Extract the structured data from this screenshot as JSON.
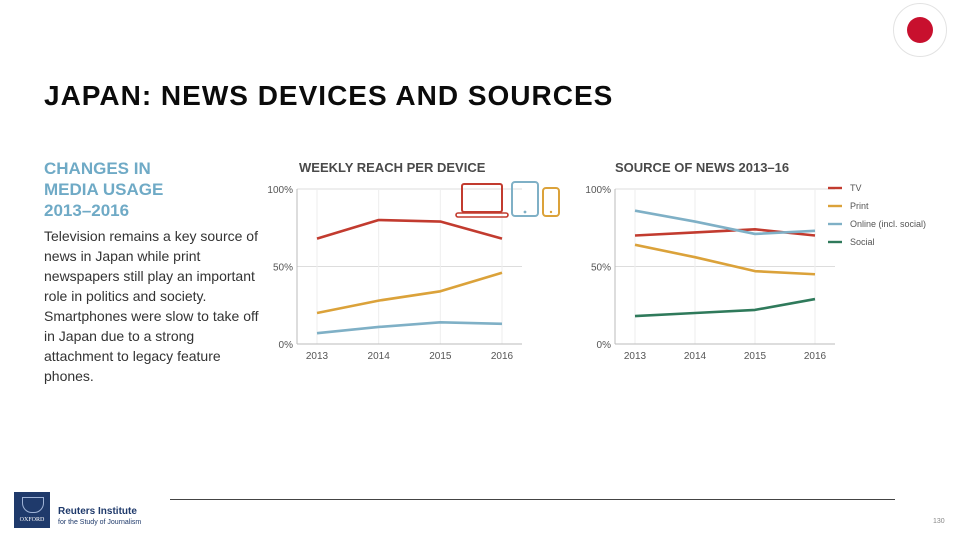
{
  "page": {
    "title": "JAPAN: NEWS DEVICES AND SOURCES",
    "side_heading": [
      "CHANGES IN",
      "MEDIA USAGE",
      "2013–2016"
    ],
    "side_body": "Television remains a key source of news in Japan while print newspapers still play an important role in politics and society. Smartphones were slow to take off in Japan due to a strong attachment to legacy feature phones.",
    "footer": {
      "brand_line1": "Reuters Institute",
      "brand_line2": "for the Study of Journalism",
      "logo_text": "OXFORD",
      "page_number": "130"
    },
    "flag_color": "#c8102e",
    "heading_color": "#6faac6"
  },
  "chart_data": [
    {
      "type": "line",
      "title": "WEEKLY REACH PER DEVICE",
      "categories": [
        "2013",
        "2014",
        "2015",
        "2016"
      ],
      "y_ticks": [
        "100%",
        "50%",
        "0%"
      ],
      "ylim": [
        0,
        100
      ],
      "grid": true,
      "legend": "device icons at top-right",
      "icons": [
        {
          "name": "laptop-icon",
          "color": "#c23b2f"
        },
        {
          "name": "tablet-icon",
          "color": "#7fb0c6"
        },
        {
          "name": "smartphone-icon",
          "color": "#dba23a"
        }
      ],
      "series": [
        {
          "color": "#c23b2f",
          "values": [
            68,
            80,
            79,
            68
          ]
        },
        {
          "color": "#dba23a",
          "values": [
            20,
            28,
            34,
            46
          ]
        },
        {
          "color": "#7fb0c6",
          "values": [
            7,
            11,
            14,
            13
          ]
        }
      ]
    },
    {
      "type": "line",
      "title": "SOURCE OF NEWS 2013–16",
      "categories": [
        "2013",
        "2014",
        "2015",
        "2016"
      ],
      "y_ticks": [
        "100%",
        "50%",
        "0%"
      ],
      "ylim": [
        0,
        100
      ],
      "grid": true,
      "legend": "right",
      "series": [
        {
          "name": "TV",
          "color": "#c23b2f",
          "values": [
            70,
            72,
            74,
            70
          ]
        },
        {
          "name": "Print",
          "color": "#dba23a",
          "values": [
            64,
            56,
            47,
            45
          ]
        },
        {
          "name": "Online (incl. social)",
          "color": "#7fb0c6",
          "values": [
            86,
            79,
            71,
            73
          ]
        },
        {
          "name": "Social",
          "color": "#2f7a5b",
          "values": [
            18,
            20,
            22,
            29
          ]
        }
      ]
    }
  ]
}
